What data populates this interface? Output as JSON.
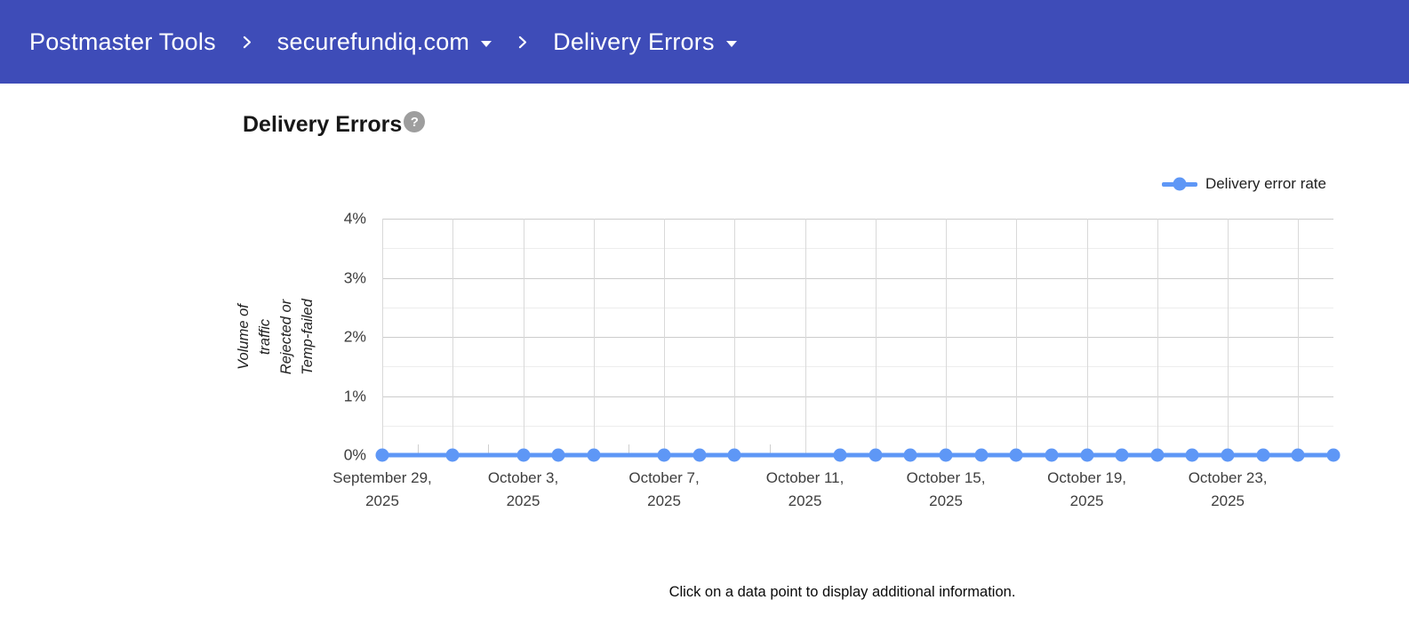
{
  "header": {
    "bg_color": "#3e4cb8",
    "items": [
      {
        "label": "Postmaster Tools",
        "dropdown": false
      },
      {
        "label": "securefundiq.com",
        "dropdown": true
      },
      {
        "label": "Delivery Errors",
        "dropdown": true
      }
    ]
  },
  "page": {
    "title": "Delivery Errors",
    "help_icon_glyph": "?",
    "footer_note": "Click on a data point to display additional information."
  },
  "legend": {
    "label": "Delivery error rate",
    "color": "#5e97f6"
  },
  "chart_data": {
    "type": "line",
    "title": "Delivery Errors",
    "ylabel": "Volume of traffic Rejected or Temp-failed",
    "ylabel_lines": [
      "Volume of traffic Rejected or",
      "Temp-failed"
    ],
    "ylim": [
      0,
      4
    ],
    "y_ticks": [
      {
        "value": 0,
        "label": "0%"
      },
      {
        "value": 1,
        "label": "1%"
      },
      {
        "value": 2,
        "label": "2%"
      },
      {
        "value": 3,
        "label": "3%"
      },
      {
        "value": 4,
        "label": "4%"
      }
    ],
    "y_minor_gridlines": [
      0.5,
      1.5,
      2.5,
      3.5
    ],
    "x": [
      "2025-09-29",
      "2025-09-30",
      "2025-10-01",
      "2025-10-02",
      "2025-10-03",
      "2025-10-04",
      "2025-10-05",
      "2025-10-06",
      "2025-10-07",
      "2025-10-08",
      "2025-10-09",
      "2025-10-10",
      "2025-10-11",
      "2025-10-12",
      "2025-10-13",
      "2025-10-14",
      "2025-10-15",
      "2025-10-16",
      "2025-10-17",
      "2025-10-18",
      "2025-10-19",
      "2025-10-20",
      "2025-10-21",
      "2025-10-22",
      "2025-10-23",
      "2025-10-24",
      "2025-10-25",
      "2025-10-26"
    ],
    "x_grid_every": 2,
    "x_tick_indices": [
      0,
      4,
      8,
      12,
      16,
      20,
      24
    ],
    "x_tick_labels": [
      [
        "September 29,",
        "2025"
      ],
      [
        "October 3,",
        "2025"
      ],
      [
        "October 7,",
        "2025"
      ],
      [
        "October 11,",
        "2025"
      ],
      [
        "October 15,",
        "2025"
      ],
      [
        "October 19,",
        "2025"
      ],
      [
        "October 23,",
        "2025"
      ]
    ],
    "series": [
      {
        "name": "Delivery error rate",
        "color": "#5e97f6",
        "values": [
          0,
          null,
          0,
          null,
          0,
          0,
          0,
          null,
          0,
          0,
          0,
          null,
          null,
          0,
          0,
          0,
          0,
          0,
          0,
          0,
          0,
          0,
          0,
          0,
          0,
          0,
          0,
          0
        ]
      }
    ],
    "legend_position": "top-right",
    "grid": {
      "major_color": "#cccccc",
      "minor_color": "#ededed",
      "vert_color": "#d9d9d9",
      "tick_color": "#cfcfcf"
    }
  }
}
